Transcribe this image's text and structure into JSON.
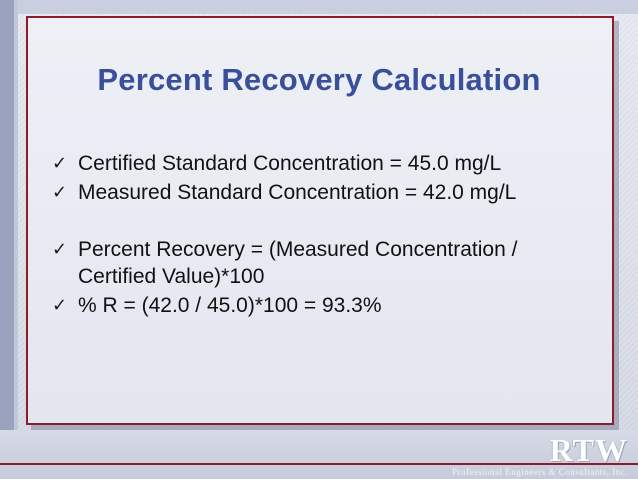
{
  "slide": {
    "title": "Percent Recovery Calculation",
    "bullets": [
      {
        "text": "Certified Standard Concentration = 45.0 mg/L",
        "icon": "checkmark-icon"
      },
      {
        "text": "Measured Standard Concentration = 42.0 mg/L",
        "icon": "checkmark-icon"
      },
      {
        "text": "Percent Recovery = (Measured Concentration / Certified Value)*100",
        "icon": "checkmark-icon"
      },
      {
        "text": "% R = (42.0 / 45.0)*100 = 93.3%",
        "icon": "checkmark-icon"
      }
    ],
    "check_glyph": "✓"
  },
  "logo": {
    "letters": "RTW",
    "tagline": "Professional Engineers & Consultants, Inc."
  },
  "colors": {
    "title": "#3a4f9a",
    "frame_border": "#8c1c2a",
    "text": "#111111"
  }
}
